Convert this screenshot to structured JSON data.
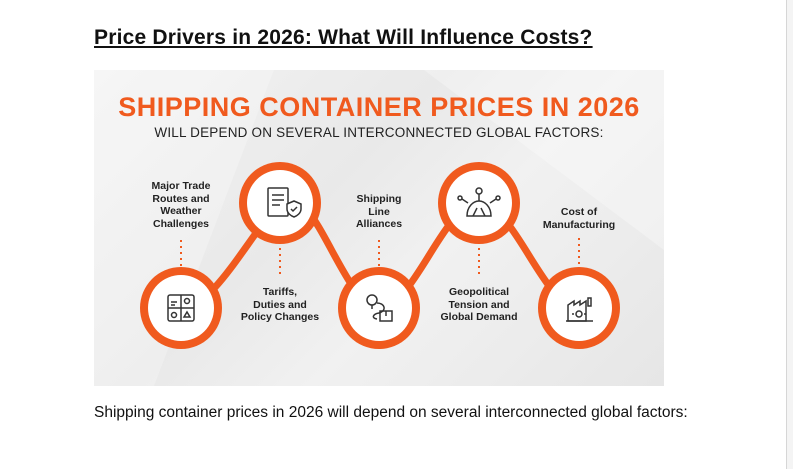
{
  "document": {
    "heading": "Price Drivers in 2026: What Will Influence Costs?",
    "caption": "Shipping container prices in 2026 will depend on several interconnected global factors:"
  },
  "infographic": {
    "title": "SHIPPING CONTAINER PRICES IN 2026",
    "subtitle": "WILL DEPEND ON SEVERAL INTERCONNECTED GLOBAL FACTORS:",
    "accent_color": "#f05a1e",
    "factors": [
      {
        "lines": [
          "Major Trade",
          "Routes and",
          "Weather",
          "Challenges"
        ],
        "icon": "weather-grid-icon",
        "label_position": "above"
      },
      {
        "lines": [
          "Tariffs,",
          "Duties and",
          "Policy Changes"
        ],
        "icon": "document-shield-icon",
        "label_position": "below"
      },
      {
        "lines": [
          "Shipping",
          "Line",
          "Alliances"
        ],
        "icon": "route-box-icon",
        "label_position": "above"
      },
      {
        "lines": [
          "Geopolitical",
          "Tension and",
          "Global Demand"
        ],
        "icon": "network-hub-icon",
        "label_position": "below"
      },
      {
        "lines": [
          "Cost of",
          "Manufacturing"
        ],
        "icon": "factory-icon",
        "label_position": "above"
      }
    ]
  }
}
